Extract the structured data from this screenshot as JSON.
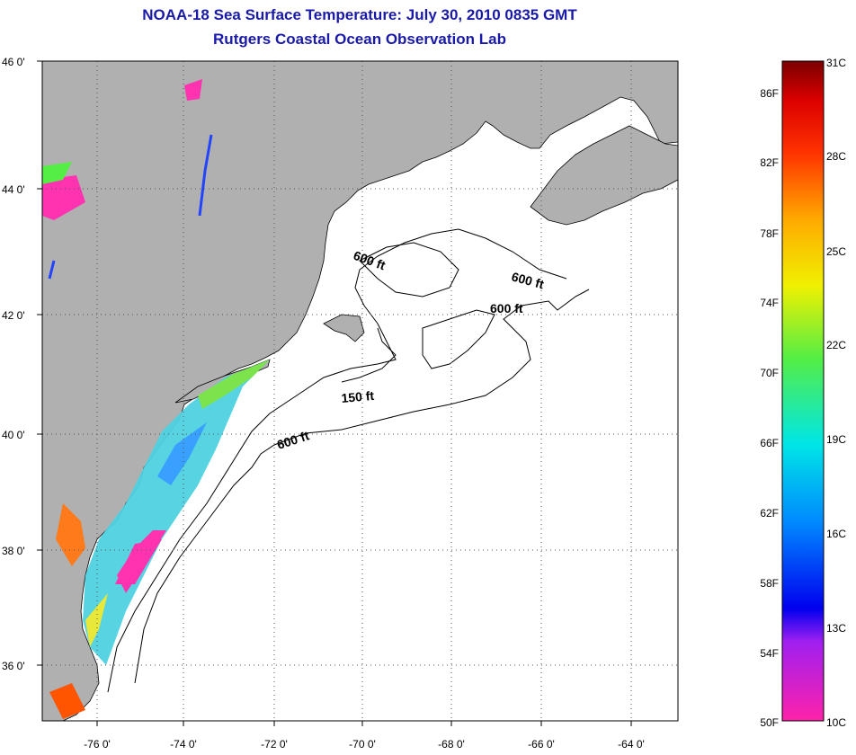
{
  "title": {
    "line1": "NOAA-18 Sea Surface Temperature:  July 30, 2010 0835 GMT",
    "line2": "Rutgers Coastal Ocean Observation Lab"
  },
  "axes": {
    "lat_labels": [
      "46 0'",
      "44 0'",
      "42 0'",
      "40 0'",
      "38 0'",
      "36 0'"
    ],
    "lon_labels": [
      "-76 0'",
      "-74 0'",
      "-72 0'",
      "-70 0'",
      "-68 0'",
      "-66 0'",
      "-64 0'"
    ]
  },
  "contour_labels": [
    "600 ft",
    "600 ft",
    "600 ft",
    "150 ft",
    "600 ft"
  ],
  "colorbar": {
    "fahrenheit_labels": [
      "86F",
      "82F",
      "78F",
      "74F",
      "70F",
      "66F",
      "62F",
      "58F",
      "54F",
      "50F"
    ],
    "celsius_labels": [
      "31C",
      "28C",
      "25C",
      "22C",
      "19C",
      "16C",
      "13C",
      "10C"
    ]
  },
  "colors": {
    "title": "#1a1aa8",
    "land": "#b0b0b0",
    "ocean": "#ffffff",
    "grid": "#555555"
  }
}
